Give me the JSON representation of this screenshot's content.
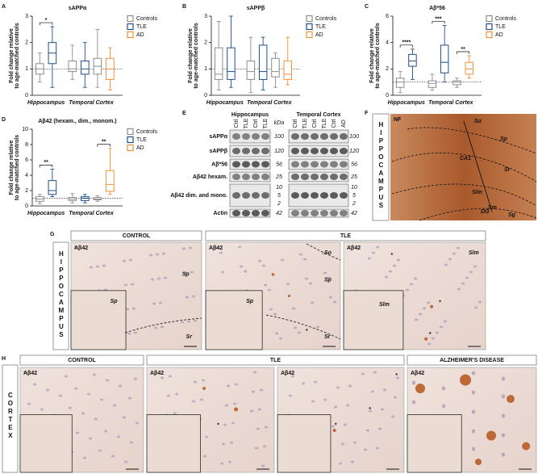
{
  "chart_data": [
    {
      "type": "box",
      "title": "sAPPα",
      "ylabel": [
        "Fold change relative",
        "to age-matched controls"
      ],
      "ylim": [
        0,
        3
      ],
      "yticks": [
        0,
        1,
        2,
        3
      ],
      "hline": 1,
      "categories": [
        "Hippocampus",
        "Temporal Cortex"
      ],
      "groups": [
        {
          "name": "Controls",
          "color": "#8c8c8c"
        },
        {
          "name": "TLE",
          "color": "#1f4e8c"
        },
        {
          "name": "AD",
          "color": "#f0913a"
        }
      ],
      "boxes": [
        {
          "category": 0,
          "group": 0,
          "stats": [
            0.5,
            0.8,
            1.0,
            1.2,
            1.6
          ]
        },
        {
          "category": 0,
          "group": 1,
          "stats": [
            0.3,
            1.2,
            1.6,
            2.0,
            2.6
          ]
        },
        {
          "category": 1,
          "group": 0,
          "stats": [
            0.6,
            0.9,
            1.0,
            1.3,
            1.9
          ]
        },
        {
          "category": 1,
          "group": 1,
          "stats": [
            0.3,
            0.8,
            1.0,
            1.3,
            2.0
          ]
        },
        {
          "category": 1,
          "group": 0,
          "stats": [
            0.3,
            0.8,
            1.1,
            1.4,
            2.5
          ]
        },
        {
          "category": 1,
          "group": 2,
          "stats": [
            0.2,
            0.6,
            1.0,
            1.4,
            1.8
          ]
        }
      ],
      "significance": [
        {
          "label": "*",
          "boxes": [
            0,
            1
          ]
        }
      ]
    },
    {
      "type": "box",
      "title": "sAPPβ",
      "ylabel": [
        "Fold change relative",
        "to age-matched controls"
      ],
      "ylim": [
        0,
        3
      ],
      "yticks": [
        0,
        1,
        2,
        3
      ],
      "hline": 1,
      "categories": [
        "Hippocampus",
        "Temporal Cortex"
      ],
      "groups": [
        {
          "name": "Controls",
          "color": "#8c8c8c"
        },
        {
          "name": "TLE",
          "color": "#1f4e8c"
        },
        {
          "name": "AD",
          "color": "#f0913a"
        }
      ],
      "boxes": [
        {
          "category": 0,
          "group": 0,
          "stats": [
            0.2,
            0.6,
            0.8,
            1.8,
            2.8
          ]
        },
        {
          "category": 0,
          "group": 1,
          "stats": [
            0.3,
            0.6,
            0.9,
            1.8,
            3.0
          ]
        },
        {
          "category": 1,
          "group": 0,
          "stats": [
            0.1,
            0.6,
            0.9,
            1.3,
            2.2
          ]
        },
        {
          "category": 1,
          "group": 1,
          "stats": [
            0.2,
            0.6,
            0.9,
            1.9,
            2.2
          ]
        },
        {
          "category": 1,
          "group": 0,
          "stats": [
            0.3,
            0.7,
            0.9,
            1.4,
            1.6
          ]
        },
        {
          "category": 1,
          "group": 2,
          "stats": [
            0.4,
            0.6,
            0.8,
            1.3,
            2.2
          ]
        }
      ],
      "significance": []
    },
    {
      "type": "box",
      "title": "Aβ*56",
      "ylabel": [
        "Fold change relative",
        "to age-matched controls"
      ],
      "ylim": [
        0,
        6
      ],
      "yticks": [
        0,
        2,
        4,
        6
      ],
      "hline": 1,
      "categories": [
        "Hippocampus",
        "Temporal Cortex"
      ],
      "groups": [
        {
          "name": "Controls",
          "color": "#8c8c8c"
        },
        {
          "name": "TLE",
          "color": "#1f4e8c"
        },
        {
          "name": "AD",
          "color": "#f0913a"
        }
      ],
      "boxes": [
        {
          "category": 0,
          "group": 0,
          "stats": [
            0.2,
            0.6,
            1.0,
            1.3,
            1.8
          ]
        },
        {
          "category": 0,
          "group": 1,
          "stats": [
            1.2,
            2.2,
            2.6,
            3.1,
            3.5
          ]
        },
        {
          "category": 1,
          "group": 0,
          "stats": [
            0.4,
            0.6,
            0.9,
            1.1,
            1.6
          ]
        },
        {
          "category": 1,
          "group": 1,
          "stats": [
            1.0,
            1.7,
            2.5,
            3.8,
            5.3
          ]
        },
        {
          "category": 1,
          "group": 0,
          "stats": [
            0.6,
            0.8,
            1.0,
            1.1,
            1.3
          ]
        },
        {
          "category": 1,
          "group": 2,
          "stats": [
            1.3,
            1.6,
            2.0,
            2.5,
            3.0
          ]
        }
      ],
      "significance": [
        {
          "label": "****",
          "boxes": [
            0,
            1
          ]
        },
        {
          "label": "***",
          "boxes": [
            2,
            3
          ]
        },
        {
          "label": "**",
          "boxes": [
            4,
            5
          ]
        }
      ]
    },
    {
      "type": "box",
      "title": "Aβ42 (hexam., dim., monom.)",
      "ylabel": [
        "Fold change relative",
        "to age-matched controls"
      ],
      "ylim": [
        0,
        10
      ],
      "yticks": [
        0,
        2,
        4,
        6,
        8,
        10
      ],
      "hline": 1,
      "categories": [
        "Hippocampus",
        "Temporal Cortex"
      ],
      "groups": [
        {
          "name": "Controls",
          "color": "#8c8c8c"
        },
        {
          "name": "TLE",
          "color": "#1f4e8c"
        },
        {
          "name": "AD",
          "color": "#f0913a"
        }
      ],
      "boxes": [
        {
          "category": 0,
          "group": 0,
          "stats": [
            0.3,
            0.6,
            0.9,
            1.2,
            1.5
          ]
        },
        {
          "category": 0,
          "group": 1,
          "stats": [
            1.2,
            1.5,
            2.0,
            3.3,
            4.8
          ]
        },
        {
          "category": 1,
          "group": 0,
          "stats": [
            0.4,
            0.7,
            0.9,
            1.1,
            1.6
          ]
        },
        {
          "category": 1,
          "group": 1,
          "stats": [
            0.4,
            0.7,
            1.0,
            1.2,
            1.5
          ]
        },
        {
          "category": 1,
          "group": 0,
          "stats": [
            0.6,
            0.8,
            0.9,
            1.1,
            1.3
          ]
        },
        {
          "category": 1,
          "group": 2,
          "stats": [
            1.5,
            1.9,
            2.8,
            4.6,
            7.5
          ]
        }
      ],
      "significance": [
        {
          "label": "**",
          "boxes": [
            0,
            1
          ]
        },
        {
          "label": "**",
          "boxes": [
            4,
            5
          ]
        }
      ]
    }
  ],
  "figure": {
    "panel_letters": [
      "A",
      "B",
      "C",
      "D",
      "E",
      "F",
      "G",
      "H"
    ],
    "blot": {
      "regions": [
        "Hippocampus",
        "Temporal Cortex"
      ],
      "lanes": [
        [
          "Ctrl",
          "TLE",
          "Ctrl",
          "TLE"
        ],
        [
          "Ctrl",
          "TLE",
          "Ctrl",
          "TLE",
          "Ctrl",
          "AD"
        ]
      ],
      "kda_header": "kDa",
      "rows": [
        {
          "label": "sAPPα",
          "kda": [
            100
          ]
        },
        {
          "label": "sAPPβ",
          "kda": [
            120
          ]
        },
        {
          "label": "Aβ*56",
          "kda": [
            56
          ]
        },
        {
          "label": "Aβ42 hexam.",
          "kda": [
            25
          ]
        },
        {
          "label": "Aβ42 dim. and mono.",
          "kda": [
            10,
            5,
            2
          ]
        },
        {
          "label": "Actin",
          "kda": [
            42
          ]
        }
      ]
    },
    "nf_panel": {
      "stain": "NF",
      "side": "HIPPOCAMPUS",
      "regions": [
        "So",
        "Sp",
        "CA1",
        "Sr",
        "Slm",
        "Sm",
        "Sg",
        "DG"
      ]
    },
    "hippocampus_row": {
      "side": "HIPPOCAMPUS",
      "headers": [
        "CONTROL",
        "TLE"
      ],
      "images": [
        {
          "stain": "Aβ42",
          "labels": [
            "Sp",
            "Sp",
            "Sr"
          ]
        },
        {
          "stain": "Aβ42",
          "labels": [
            "So",
            "Sp",
            "Sp",
            "Sr",
            "*"
          ]
        },
        {
          "stain": "Aβ42",
          "labels": [
            "Slm",
            "Slm",
            "*",
            "*",
            "*"
          ]
        }
      ]
    },
    "cortex_row": {
      "side": "CORTEX",
      "headers": [
        "CONTROL",
        "TLE",
        "ALZHEIMER'S DISEASE"
      ],
      "images": [
        {
          "stain": "Aβ42",
          "labels": []
        },
        {
          "stain": "Aβ42",
          "labels": [
            "*"
          ]
        },
        {
          "stain": "Aβ42",
          "labels": [
            "*",
            "*",
            "*"
          ]
        },
        {
          "stain": "Aβ42",
          "labels": []
        }
      ]
    }
  }
}
